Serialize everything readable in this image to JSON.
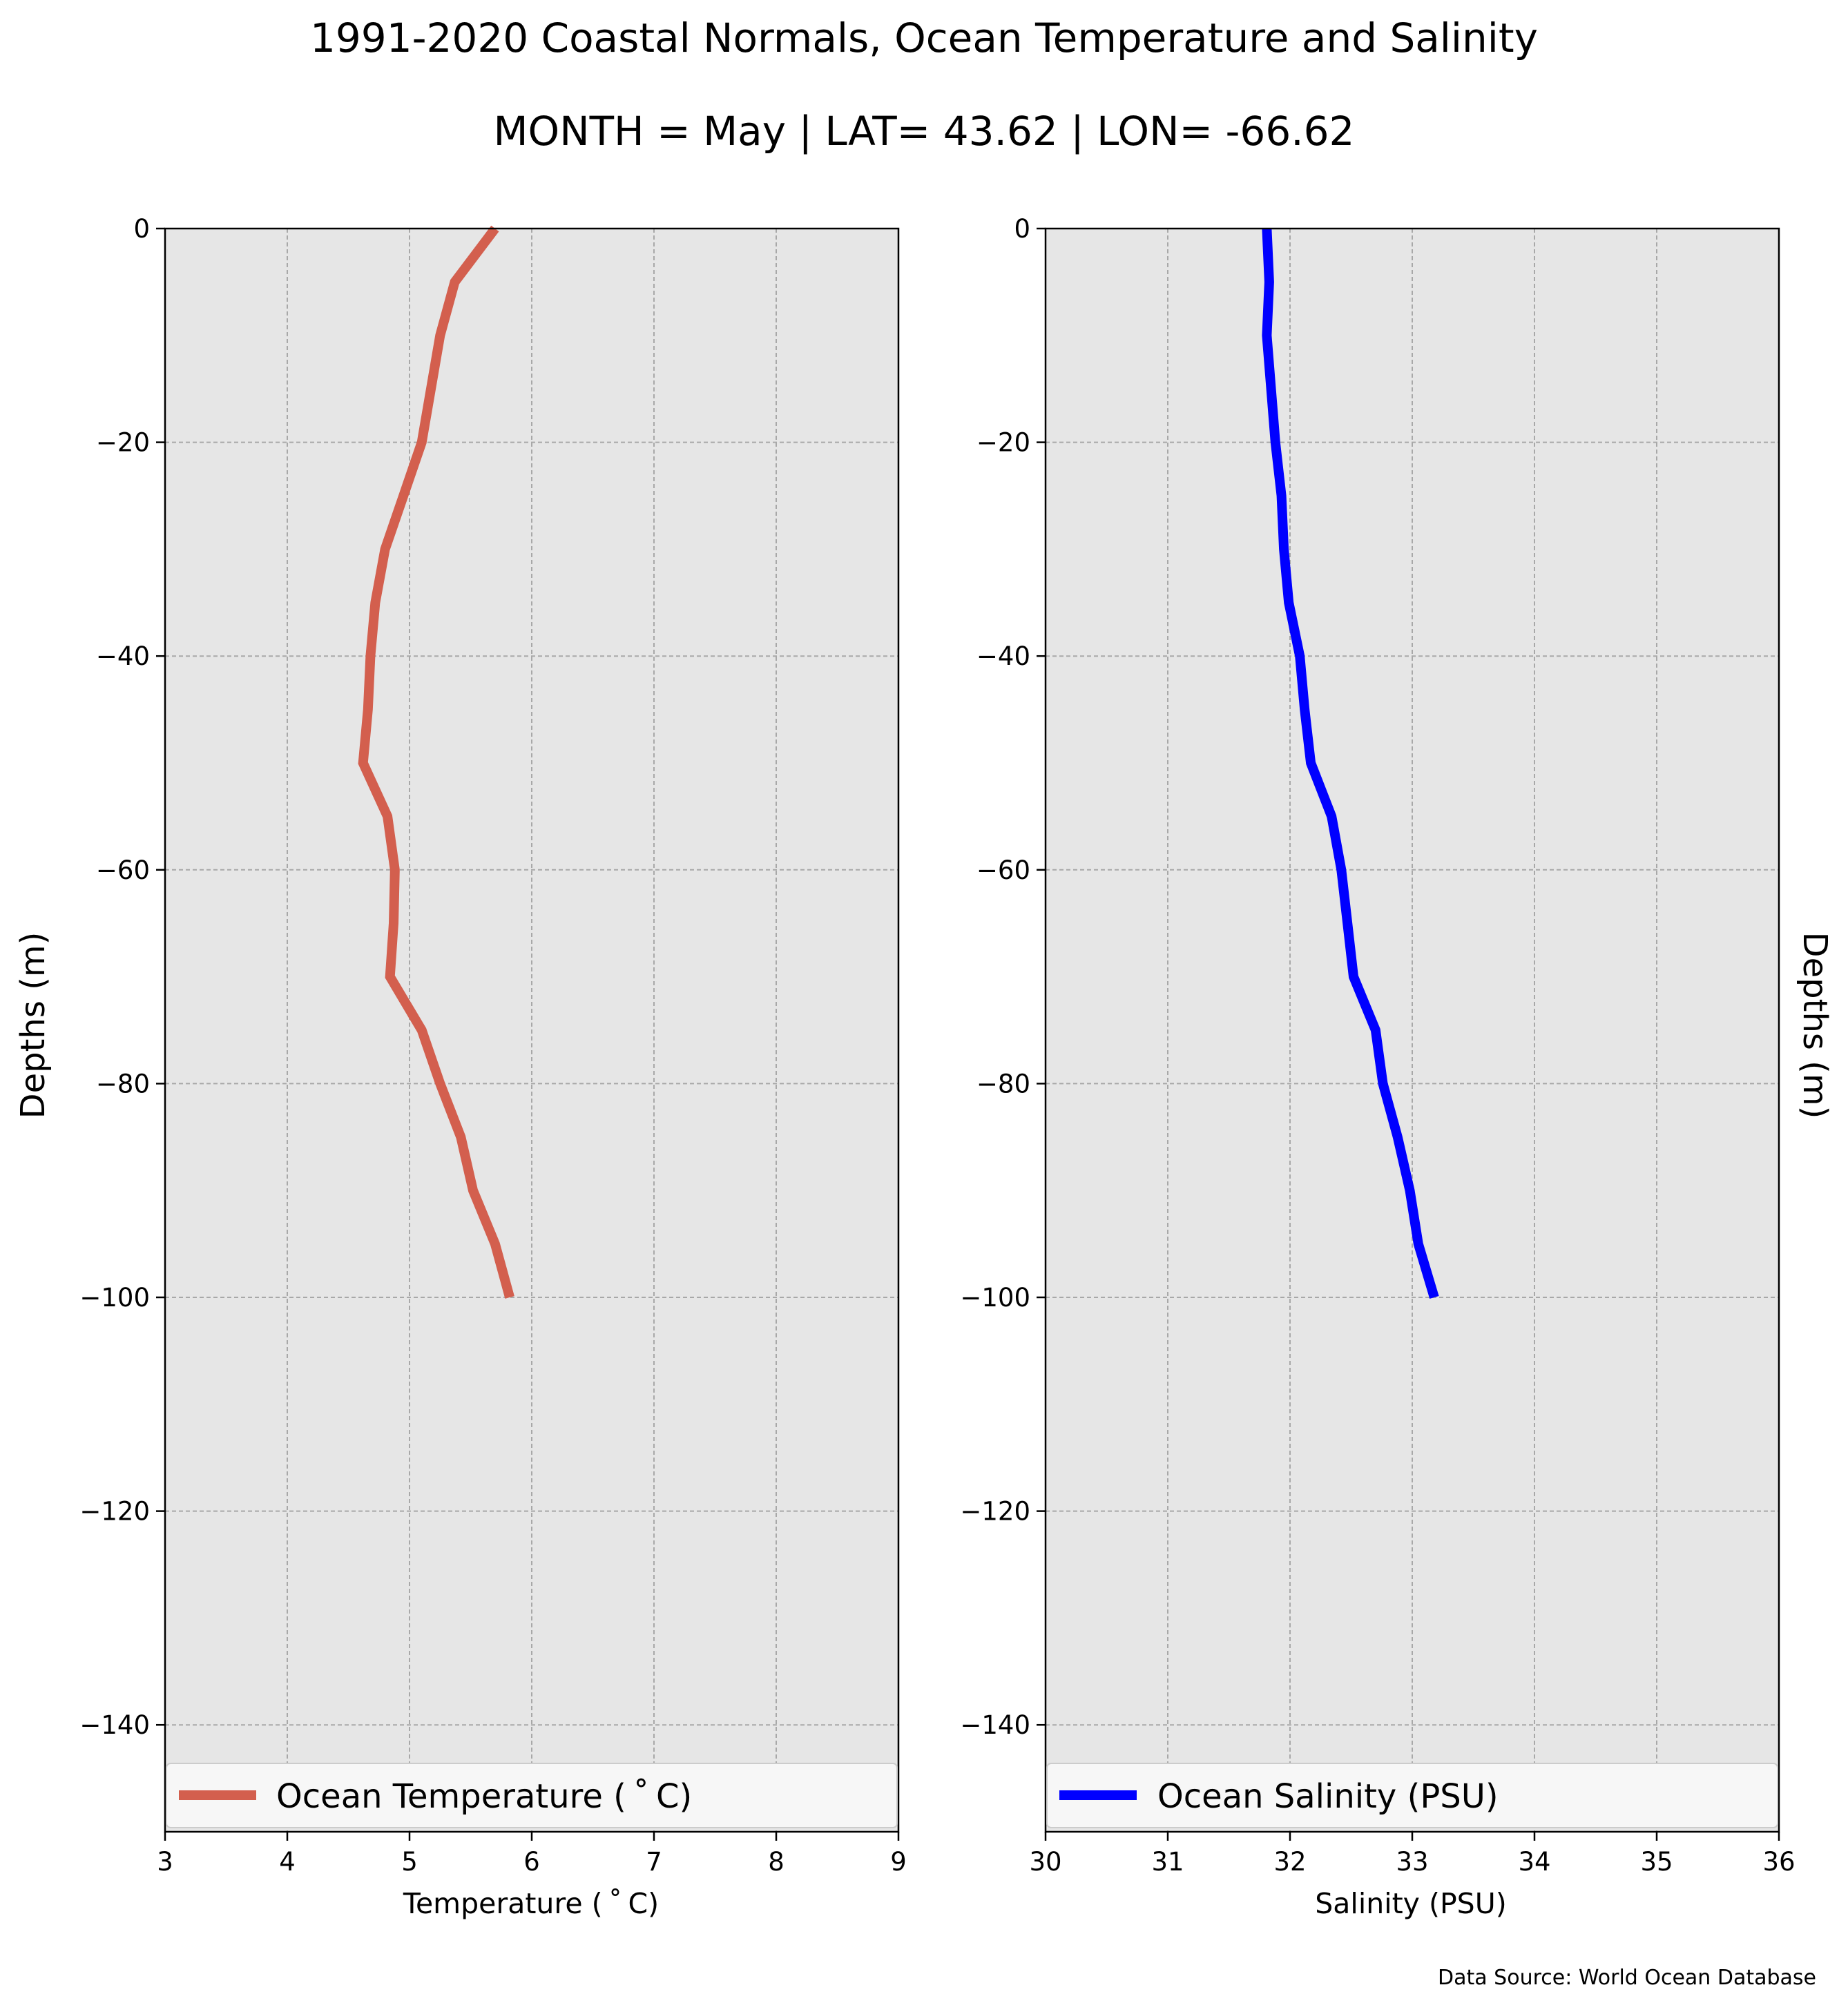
{
  "title": "1991-2020 Coastal Normals, Ocean Temperature and Salinity",
  "subtitle": "MONTH = May | LAT= 43.62 | LON= -66.62",
  "source_note": "Data Source: World Ocean Database",
  "colors": {
    "panel_background": "#e6e6e6",
    "grid": "#a8a8a8",
    "temperature_line": "#d35f4e",
    "salinity_line": "#0000ff",
    "legend_background": "#f7f7f7"
  },
  "chart_data": [
    {
      "type": "line",
      "xlabel": "Temperature ($^\\circ$C)",
      "xlabel_display": "Temperature ( ˚ C)",
      "ylabel": "Depths (m)",
      "xlim": [
        3,
        9
      ],
      "ylim": [
        -150,
        0
      ],
      "xticks": [
        3,
        4,
        5,
        6,
        7,
        8,
        9
      ],
      "yticks": [
        0,
        -20,
        -40,
        -60,
        -80,
        -100,
        -120,
        -140
      ],
      "grid": true,
      "legend_position": "bottom",
      "series": [
        {
          "name": "Ocean Temperature (˚C)",
          "name_display": "Ocean Temperature ( ˚ C)",
          "color": "#d35f4e",
          "x": [
            5.7,
            5.37,
            5.25,
            5.1,
            4.95,
            4.8,
            4.72,
            4.68,
            4.66,
            4.62,
            4.82,
            4.88,
            4.87,
            4.84,
            5.1,
            5.25,
            5.42,
            5.52,
            5.7,
            5.82
          ],
          "y": [
            0,
            -5,
            -10,
            -20,
            -25,
            -30,
            -35,
            -40,
            -45,
            -50,
            -55,
            -60,
            -65,
            -70,
            -75,
            -80,
            -85,
            -90,
            -95,
            -100
          ]
        }
      ]
    },
    {
      "type": "line",
      "xlabel": "Salinity (PSU)",
      "ylabel": "Depths (m)",
      "ylabel_position": "right",
      "xlim": [
        30,
        36
      ],
      "ylim": [
        -150,
        0
      ],
      "xticks": [
        30,
        31,
        32,
        33,
        34,
        35,
        36
      ],
      "yticks": [
        0,
        -20,
        -40,
        -60,
        -80,
        -100,
        -120,
        -140
      ],
      "grid": true,
      "legend_position": "bottom",
      "series": [
        {
          "name": "Ocean Salinity (PSU)",
          "color": "#0000ff",
          "x": [
            31.81,
            31.83,
            31.81,
            31.88,
            31.93,
            31.95,
            31.99,
            32.08,
            32.12,
            32.17,
            32.34,
            32.42,
            32.47,
            32.52,
            32.7,
            32.76,
            32.88,
            32.98,
            33.05,
            33.18
          ],
          "y": [
            0,
            -5,
            -10,
            -20,
            -25,
            -30,
            -35,
            -40,
            -45,
            -50,
            -55,
            -60,
            -65,
            -70,
            -75,
            -80,
            -85,
            -90,
            -95,
            -100
          ]
        }
      ]
    }
  ]
}
